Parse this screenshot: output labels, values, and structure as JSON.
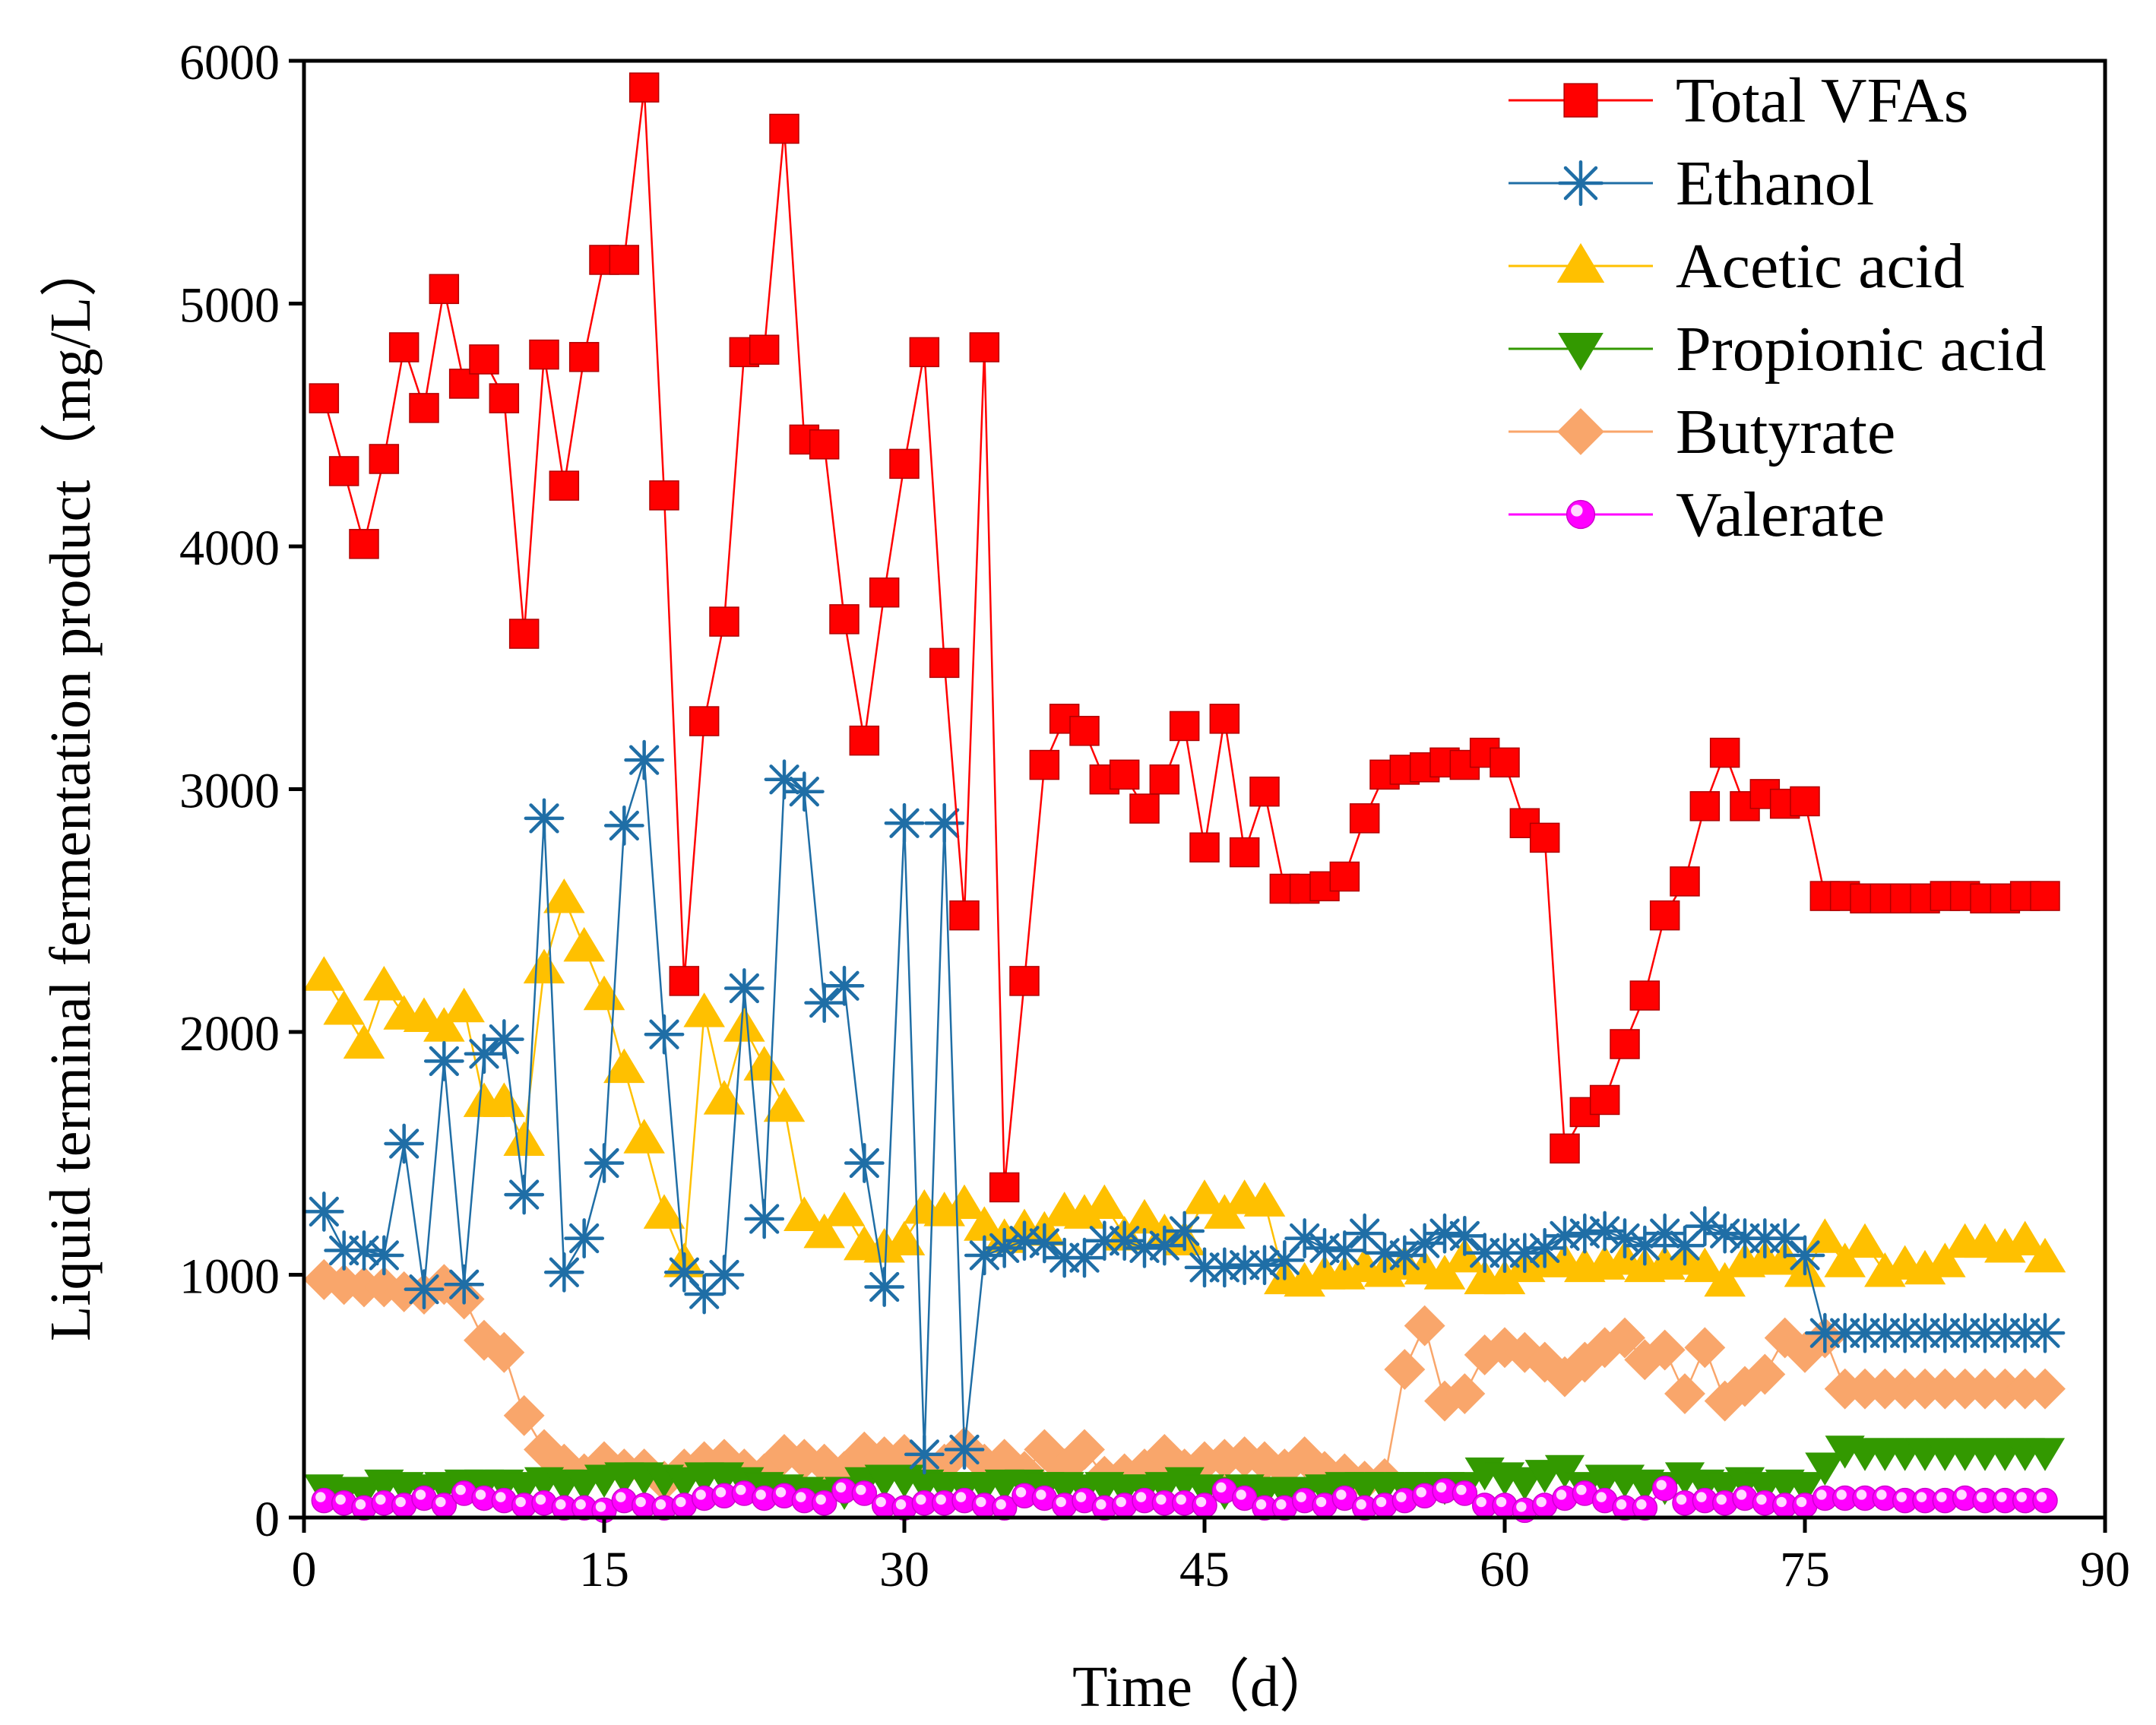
{
  "chart_data": {
    "type": "line",
    "title": "",
    "xlabel": "Time（d）",
    "ylabel": "Liquid terminal fermentation product（mg/L）",
    "xlim": [
      0,
      90
    ],
    "ylim": [
      0,
      6000
    ],
    "xticks": [
      0,
      15,
      30,
      45,
      60,
      75,
      90
    ],
    "yticks": [
      0,
      1000,
      2000,
      3000,
      4000,
      5000,
      6000
    ],
    "grid": false,
    "legend_position": "top-right",
    "series": [
      {
        "name": "Total VFAs",
        "color": "#ff0000",
        "marker": "square",
        "x": [
          1,
          2,
          3,
          4,
          5,
          6,
          7,
          8,
          9,
          10,
          11,
          12,
          13,
          14,
          15,
          16,
          17,
          18,
          19,
          20,
          21,
          22,
          23,
          24,
          25,
          26,
          27,
          28,
          29,
          30,
          31,
          32,
          33,
          34,
          35,
          36,
          37,
          38,
          39,
          40,
          41,
          42,
          43,
          44,
          45,
          46,
          47,
          48,
          49,
          50,
          51,
          52,
          53,
          54,
          55,
          56,
          57,
          58,
          59,
          60,
          61,
          62,
          63,
          64,
          65,
          66,
          67,
          68,
          69,
          70,
          71,
          72,
          73,
          74,
          75,
          76,
          77,
          78,
          79,
          80,
          81,
          82,
          83,
          84,
          85,
          86,
          87
        ],
        "y": [
          4610,
          4310,
          4010,
          4360,
          4820,
          4570,
          5060,
          4670,
          4770,
          4610,
          3640,
          4790,
          4250,
          4780,
          5180,
          5180,
          5890,
          4210,
          2210,
          3280,
          3690,
          4800,
          4810,
          5720,
          4440,
          4420,
          3700,
          3200,
          3810,
          4340,
          4800,
          3520,
          2480,
          4820,
          1360,
          2210,
          3100,
          3290,
          3240,
          3040,
          3060,
          2920,
          3040,
          3260,
          2760,
          3290,
          2740,
          2990,
          2590,
          2590,
          2600,
          2640,
          2880,
          3060,
          3080,
          3090,
          3110,
          3100,
          3150,
          3110,
          2860,
          2800,
          1520,
          1670,
          1720,
          1950,
          2150,
          2480,
          2620,
          2930,
          3150,
          2930,
          2980,
          2940,
          2950,
          2560,
          2560,
          2550,
          2550,
          2550,
          2550,
          2560,
          2560,
          2550,
          2550,
          2560,
          2560
        ]
      },
      {
        "name": "Ethanol",
        "color": "#1f6ea6",
        "marker": "asterisk",
        "x": [
          1,
          2,
          3,
          4,
          5,
          6,
          7,
          8,
          9,
          10,
          11,
          12,
          13,
          14,
          15,
          16,
          17,
          18,
          19,
          20,
          21,
          22,
          23,
          24,
          25,
          26,
          27,
          28,
          29,
          30,
          31,
          32,
          33,
          34,
          35,
          36,
          37,
          38,
          39,
          40,
          41,
          42,
          43,
          44,
          45,
          46,
          47,
          48,
          49,
          50,
          51,
          52,
          53,
          54,
          55,
          56,
          57,
          58,
          59,
          60,
          61,
          62,
          63,
          64,
          65,
          66,
          67,
          68,
          69,
          70,
          71,
          72,
          73,
          74,
          75,
          76,
          77,
          78,
          79,
          80,
          81,
          82,
          83,
          84,
          85,
          86,
          87
        ],
        "y": [
          1260,
          1100,
          1100,
          1080,
          1540,
          940,
          1880,
          960,
          1910,
          1970,
          1330,
          2880,
          1010,
          1150,
          1460,
          2850,
          3120,
          1990,
          1010,
          920,
          1000,
          2180,
          1230,
          3040,
          2990,
          2120,
          2190,
          1460,
          950,
          2860,
          260,
          2860,
          280,
          1080,
          1110,
          1140,
          1130,
          1070,
          1070,
          1140,
          1140,
          1110,
          1120,
          1180,
          1030,
          1030,
          1040,
          1040,
          1060,
          1150,
          1110,
          1100,
          1170,
          1090,
          1080,
          1130,
          1170,
          1160,
          1090,
          1090,
          1090,
          1110,
          1160,
          1170,
          1180,
          1150,
          1120,
          1170,
          1120,
          1200,
          1170,
          1150,
          1150,
          1150,
          1080,
          760,
          760,
          760,
          760,
          760,
          760,
          760,
          760,
          760,
          760,
          760,
          760
        ]
      },
      {
        "name": "Acetic acid",
        "color": "#ffc000",
        "marker": "triangle-up",
        "x": [
          1,
          2,
          3,
          4,
          5,
          6,
          7,
          8,
          9,
          10,
          11,
          12,
          13,
          14,
          15,
          16,
          17,
          18,
          19,
          20,
          21,
          22,
          23,
          24,
          25,
          26,
          27,
          28,
          29,
          30,
          31,
          32,
          33,
          34,
          35,
          36,
          37,
          38,
          39,
          40,
          41,
          42,
          43,
          44,
          45,
          46,
          47,
          48,
          49,
          50,
          51,
          52,
          53,
          54,
          55,
          56,
          57,
          58,
          59,
          60,
          61,
          62,
          63,
          64,
          65,
          66,
          67,
          68,
          69,
          70,
          71,
          72,
          73,
          74,
          75,
          76,
          77,
          78,
          79,
          80,
          81,
          82,
          83,
          84,
          85,
          86,
          87
        ],
        "y": [
          2230,
          2090,
          1950,
          2190,
          2070,
          2060,
          2020,
          2100,
          1710,
          1710,
          1550,
          2260,
          2550,
          2350,
          2150,
          1850,
          1560,
          1250,
          1050,
          2080,
          1720,
          2020,
          1860,
          1690,
          1240,
          1170,
          1260,
          1120,
          1110,
          1140,
          1270,
          1260,
          1290,
          1200,
          1150,
          1190,
          1180,
          1260,
          1250,
          1290,
          1160,
          1230,
          1170,
          1140,
          1310,
          1250,
          1310,
          1300,
          980,
          970,
          1000,
          1000,
          1030,
          1010,
          1040,
          1020,
          1000,
          1070,
          980,
          980,
          1030,
          1050,
          1050,
          1030,
          1040,
          1060,
          1030,
          1040,
          1060,
          1030,
          970,
          1050,
          1060,
          1060,
          1010,
          1150,
          1050,
          1130,
          1010,
          1040,
          1020,
          1050,
          1130,
          1130,
          1110,
          1140,
          1070
        ]
      },
      {
        "name": "Propionic acid",
        "color": "#339900",
        "marker": "triangle-down",
        "x": [
          1,
          2,
          3,
          4,
          5,
          6,
          7,
          8,
          9,
          10,
          11,
          12,
          13,
          14,
          15,
          16,
          17,
          18,
          19,
          20,
          21,
          22,
          23,
          24,
          25,
          26,
          27,
          28,
          29,
          30,
          31,
          32,
          33,
          34,
          35,
          36,
          37,
          38,
          39,
          40,
          41,
          42,
          43,
          44,
          45,
          46,
          47,
          48,
          49,
          50,
          51,
          52,
          53,
          54,
          55,
          56,
          57,
          58,
          59,
          60,
          61,
          62,
          63,
          64,
          65,
          66,
          67,
          68,
          69,
          70,
          71,
          72,
          73,
          74,
          75,
          76,
          77,
          78,
          79,
          80,
          81,
          82,
          83,
          84,
          85,
          86,
          87
        ],
        "y": [
          120,
          110,
          110,
          140,
          130,
          120,
          130,
          140,
          140,
          140,
          130,
          150,
          140,
          140,
          160,
          170,
          170,
          160,
          150,
          170,
          170,
          150,
          130,
          120,
          110,
          100,
          110,
          150,
          160,
          160,
          140,
          130,
          130,
          130,
          140,
          140,
          130,
          130,
          120,
          130,
          120,
          120,
          130,
          150,
          120,
          110,
          120,
          110,
          110,
          110,
          120,
          130,
          130,
          130,
          130,
          130,
          130,
          130,
          190,
          170,
          150,
          180,
          200,
          130,
          160,
          160,
          140,
          130,
          170,
          140,
          130,
          150,
          130,
          140,
          130,
          210,
          280,
          270,
          270,
          270,
          270,
          270,
          270,
          270,
          270,
          270,
          270
        ]
      },
      {
        "name": "Butyrate",
        "color": "#f9a66b",
        "marker": "diamond",
        "x": [
          1,
          2,
          3,
          4,
          5,
          6,
          7,
          8,
          9,
          10,
          11,
          12,
          13,
          14,
          15,
          16,
          17,
          18,
          19,
          20,
          21,
          22,
          23,
          24,
          25,
          26,
          27,
          28,
          29,
          30,
          31,
          32,
          33,
          34,
          35,
          36,
          37,
          38,
          39,
          40,
          41,
          42,
          43,
          44,
          45,
          46,
          47,
          48,
          49,
          50,
          51,
          52,
          53,
          54,
          55,
          56,
          57,
          58,
          59,
          60,
          61,
          62,
          63,
          64,
          65,
          66,
          67,
          68,
          69,
          70,
          71,
          72,
          73,
          74,
          75,
          76,
          77,
          78,
          79,
          80,
          81,
          82,
          83,
          84,
          85,
          86,
          87
        ],
        "y": [
          980,
          960,
          950,
          950,
          930,
          920,
          960,
          900,
          730,
          680,
          420,
          280,
          220,
          180,
          230,
          200,
          200,
          150,
          200,
          230,
          240,
          200,
          180,
          260,
          240,
          220,
          190,
          270,
          250,
          260,
          200,
          220,
          290,
          220,
          240,
          190,
          280,
          200,
          280,
          170,
          180,
          200,
          260,
          200,
          230,
          240,
          250,
          230,
          200,
          250,
          190,
          180,
          150,
          160,
          610,
          790,
          480,
          510,
          670,
          700,
          680,
          640,
          580,
          640,
          700,
          740,
          650,
          690,
          510,
          700,
          480,
          540,
          590,
          740,
          680,
          740,
          530,
          530,
          530,
          530,
          530,
          530,
          530,
          530,
          530,
          530,
          530
        ]
      },
      {
        "name": "Valerate",
        "color": "#ff00ff",
        "marker": "circle",
        "x": [
          1,
          2,
          3,
          4,
          5,
          6,
          7,
          8,
          9,
          10,
          11,
          12,
          13,
          14,
          15,
          16,
          17,
          18,
          19,
          20,
          21,
          22,
          23,
          24,
          25,
          26,
          27,
          28,
          29,
          30,
          31,
          32,
          33,
          34,
          35,
          36,
          37,
          38,
          39,
          40,
          41,
          42,
          43,
          44,
          45,
          46,
          47,
          48,
          49,
          50,
          51,
          52,
          53,
          54,
          55,
          56,
          57,
          58,
          59,
          60,
          61,
          62,
          63,
          64,
          65,
          66,
          67,
          68,
          69,
          70,
          71,
          72,
          73,
          74,
          75,
          76,
          77,
          78,
          79,
          80,
          81,
          82,
          83,
          84,
          85,
          86,
          87
        ],
        "y": [
          70,
          60,
          40,
          60,
          50,
          80,
          50,
          100,
          80,
          70,
          50,
          60,
          40,
          40,
          30,
          70,
          50,
          40,
          50,
          80,
          90,
          100,
          80,
          90,
          70,
          60,
          110,
          100,
          50,
          40,
          60,
          60,
          70,
          50,
          40,
          90,
          80,
          50,
          70,
          40,
          50,
          70,
          60,
          60,
          50,
          110,
          80,
          40,
          40,
          70,
          50,
          80,
          40,
          50,
          70,
          90,
          110,
          100,
          50,
          50,
          30,
          50,
          80,
          100,
          70,
          40,
          40,
          120,
          60,
          70,
          60,
          80,
          60,
          50,
          50,
          80,
          80,
          80,
          80,
          70,
          70,
          70,
          80,
          70,
          70,
          70,
          70
        ]
      }
    ]
  }
}
